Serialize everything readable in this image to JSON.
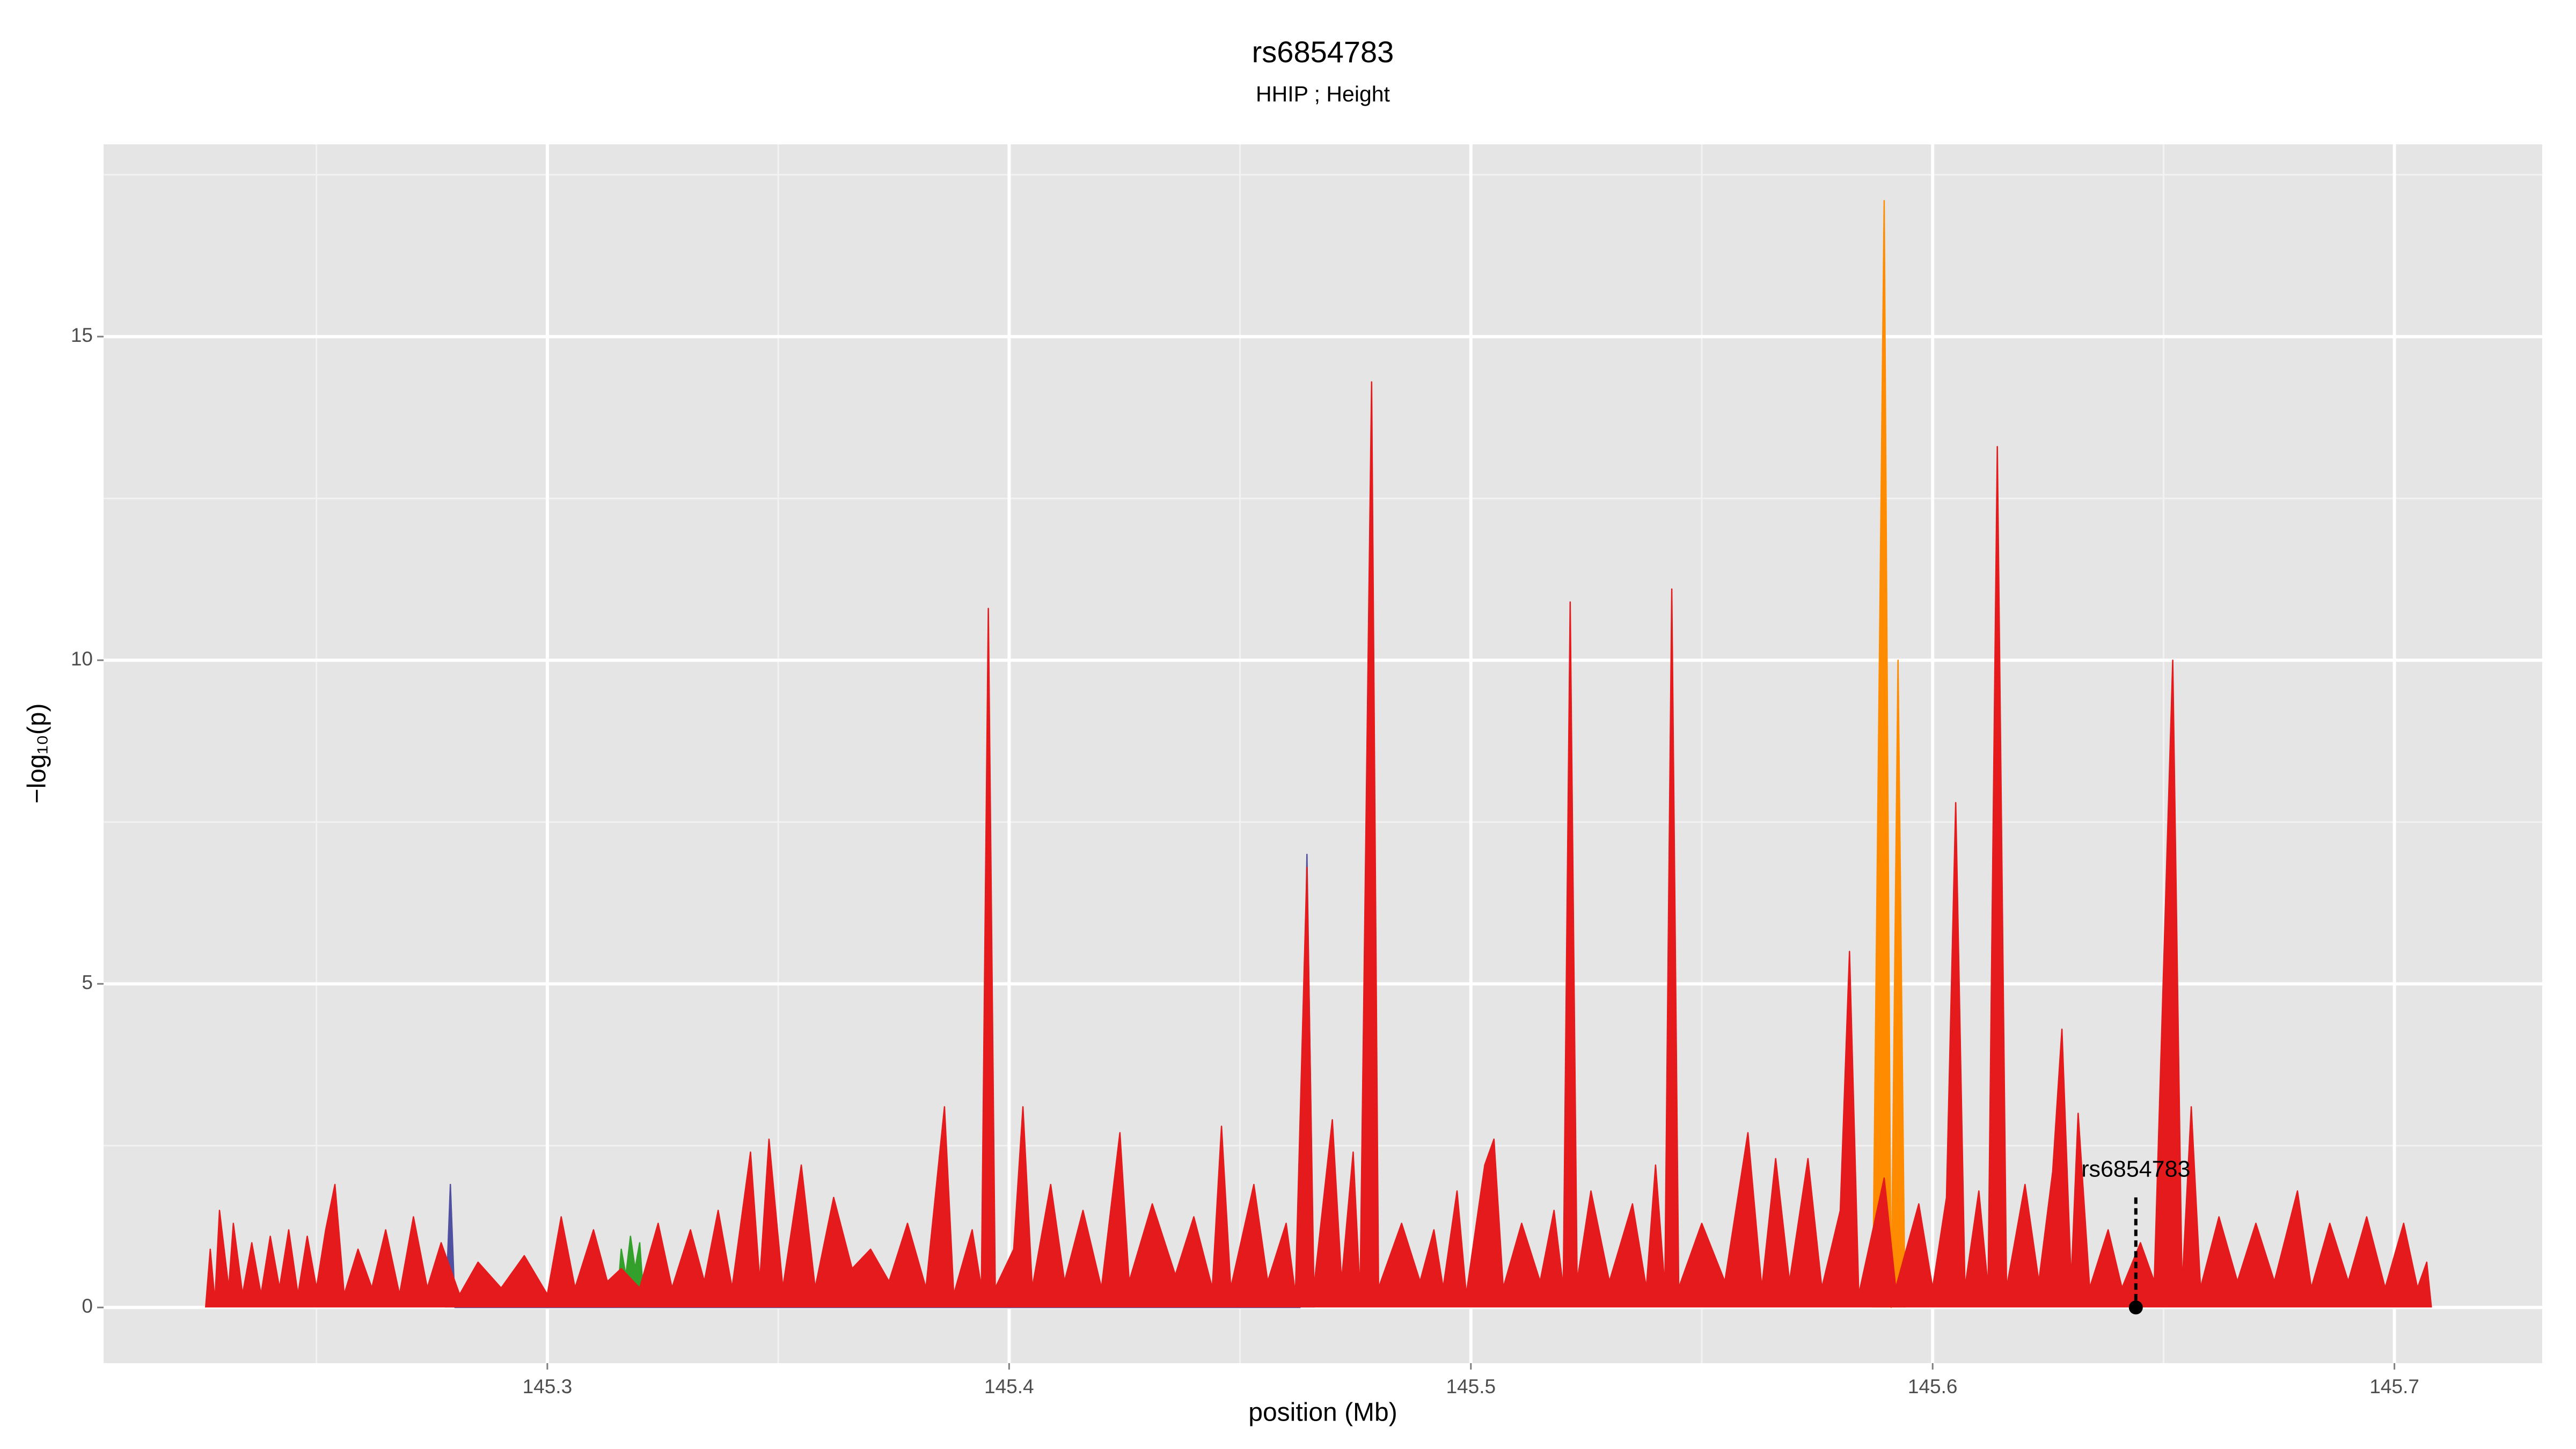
{
  "chart_data": {
    "type": "area",
    "title": "rs6854783",
    "subtitle": "HHIP ; Height",
    "x_label": "position (Mb)",
    "y_label": "−log₁₀(p)",
    "xlim": [
      145.2039,
      145.732
    ],
    "ylim": [
      -0.86,
      17.97
    ],
    "xticks": [
      145.3,
      145.4,
      145.5,
      145.6,
      145.7
    ],
    "yticks": [
      0,
      5,
      10,
      15
    ],
    "xminorticks": [
      145.25,
      145.35,
      145.45,
      145.55,
      145.65
    ],
    "yminorticks": [
      2.5,
      7.5,
      12.5,
      17.5
    ],
    "grid": true,
    "series": [
      {
        "color": "#ff8c00",
        "x": [
          145.587,
          145.5895,
          145.591,
          145.5925,
          145.594
        ],
        "values": [
          0,
          17.1,
          0,
          10.0,
          0
        ]
      },
      {
        "color": "#5050a0",
        "x": [
          145.278,
          145.279,
          145.28,
          145.463,
          145.4645,
          145.466
        ],
        "values": [
          0,
          1.9,
          0,
          0,
          7.0,
          0
        ]
      },
      {
        "color": "#33a02c",
        "x": [
          145.315,
          145.316,
          145.317,
          145.318,
          145.319,
          145.32,
          145.321
        ],
        "values": [
          0,
          0.9,
          0.5,
          1.1,
          0.6,
          1.0,
          0
        ]
      },
      {
        "color": "#e41a1c",
        "x": [
          145.226,
          145.227,
          145.228,
          145.229,
          145.231,
          145.232,
          145.234,
          145.236,
          145.238,
          145.24,
          145.242,
          145.244,
          145.246,
          145.248,
          145.25,
          145.252,
          145.254,
          145.256,
          145.259,
          145.262,
          145.265,
          145.268,
          145.271,
          145.274,
          145.277,
          145.281,
          145.285,
          145.29,
          145.295,
          145.3,
          145.303,
          145.306,
          145.31,
          145.313,
          145.316,
          145.32,
          145.324,
          145.327,
          145.331,
          145.334,
          145.337,
          145.34,
          145.344,
          145.346,
          145.348,
          145.351,
          145.355,
          145.358,
          145.362,
          145.366,
          145.37,
          145.374,
          145.378,
          145.382,
          145.386,
          145.388,
          145.392,
          145.394,
          145.3955,
          145.397,
          145.401,
          145.403,
          145.405,
          145.409,
          145.412,
          145.416,
          145.42,
          145.424,
          145.426,
          145.431,
          145.436,
          145.44,
          145.444,
          145.446,
          145.448,
          145.453,
          145.456,
          145.46,
          145.462,
          145.4645,
          145.466,
          145.47,
          145.472,
          145.4745,
          145.476,
          145.4785,
          145.48,
          145.485,
          145.489,
          145.492,
          145.494,
          145.497,
          145.499,
          145.503,
          145.505,
          145.507,
          145.511,
          145.515,
          145.518,
          145.52,
          145.5215,
          145.523,
          145.526,
          145.53,
          145.535,
          145.538,
          145.54,
          145.542,
          145.5435,
          145.545,
          145.55,
          145.555,
          145.56,
          145.563,
          145.566,
          145.569,
          145.573,
          145.576,
          145.58,
          145.582,
          145.584,
          145.5895,
          145.592,
          145.597,
          145.6,
          145.603,
          145.605,
          145.607,
          145.61,
          145.612,
          145.614,
          145.616,
          145.62,
          145.623,
          145.626,
          145.628,
          145.63,
          145.6315,
          145.634,
          145.638,
          145.641,
          145.645,
          145.648,
          145.652,
          145.654,
          145.656,
          145.658,
          145.662,
          145.666,
          145.67,
          145.674,
          145.679,
          145.682,
          145.686,
          145.69,
          145.694,
          145.698,
          145.702,
          145.705,
          145.707,
          145.708
        ],
        "values": [
          0,
          0.9,
          0.1,
          1.5,
          0.3,
          1.3,
          0.2,
          1.0,
          0.2,
          1.1,
          0.3,
          1.2,
          0.2,
          1.1,
          0.3,
          1.2,
          1.9,
          0.2,
          0.9,
          0.3,
          1.2,
          0.2,
          1.4,
          0.3,
          1.0,
          0.2,
          0.7,
          0.3,
          0.8,
          0.2,
          1.4,
          0.3,
          1.2,
          0.4,
          0.6,
          0.3,
          1.3,
          0.3,
          1.2,
          0.4,
          1.5,
          0.3,
          2.4,
          0.4,
          2.6,
          0.3,
          2.2,
          0.3,
          1.7,
          0.6,
          0.9,
          0.4,
          1.3,
          0.3,
          3.1,
          0.2,
          1.2,
          0.3,
          10.8,
          0.3,
          0.9,
          3.1,
          0.3,
          1.9,
          0.4,
          1.5,
          0.3,
          2.7,
          0.4,
          1.6,
          0.5,
          1.4,
          0.3,
          2.8,
          0.3,
          1.9,
          0.4,
          1.3,
          0.2,
          6.8,
          0.3,
          2.9,
          0.4,
          2.4,
          0.2,
          14.3,
          0.3,
          1.3,
          0.4,
          1.2,
          0.3,
          1.8,
          0.2,
          2.2,
          2.6,
          0.3,
          1.3,
          0.4,
          1.5,
          0.3,
          10.9,
          0.4,
          1.8,
          0.4,
          1.6,
          0.3,
          2.2,
          0.3,
          11.1,
          0.3,
          1.3,
          0.4,
          2.7,
          0.3,
          2.3,
          0.4,
          2.3,
          0.3,
          1.5,
          5.5,
          0.2,
          2.0,
          0.3,
          1.6,
          0.3,
          1.7,
          7.8,
          0.3,
          1.8,
          0.3,
          13.3,
          0.3,
          1.9,
          0.4,
          2.1,
          4.3,
          0.4,
          3.0,
          0.3,
          1.2,
          0.3,
          1.0,
          0.4,
          10.0,
          0.3,
          3.1,
          0.3,
          1.4,
          0.4,
          1.3,
          0.4,
          1.8,
          0.3,
          1.3,
          0.4,
          1.4,
          0.3,
          1.3,
          0.3,
          0.7,
          0
        ]
      }
    ],
    "annotation": {
      "label": "rs6854783",
      "x": 145.644,
      "y": 0,
      "line_top": 1.7
    }
  }
}
